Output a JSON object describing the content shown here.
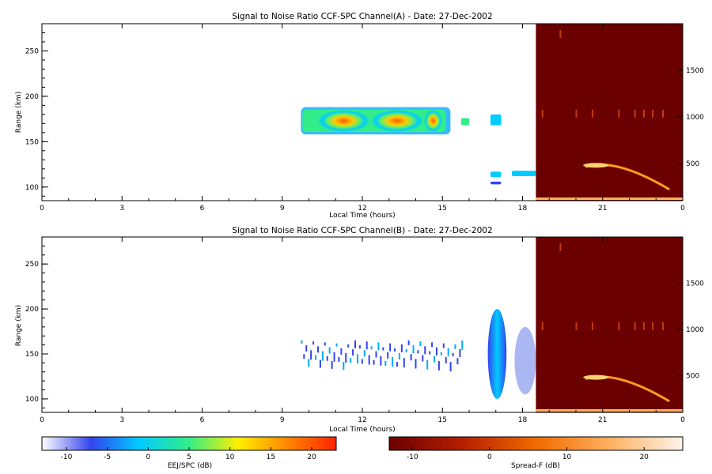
{
  "chart_data": [
    {
      "type": "heatmap",
      "title": "Signal to Noise Ratio CCF-SPC Channel(A) - Date: 27-Dec-2002",
      "xlabel": "Local Time (hours)",
      "ylabel": "Range (km)",
      "xlim": [
        0,
        24
      ],
      "ylim": [
        85,
        280
      ],
      "x_ticks": [
        "0",
        "3",
        "6",
        "9",
        "12",
        "15",
        "18",
        "21",
        "0"
      ],
      "y_ticks": [
        "100",
        "150",
        "200",
        "250"
      ],
      "y2_ticks": [
        "500",
        "1000",
        "1500"
      ],
      "y2lim": [
        100,
        2000
      ],
      "spreadf_start_hour": 18.5,
      "features": [
        {
          "name": "EEJ band",
          "x_start": 9.7,
          "x_end": 15.3,
          "y_low": 158,
          "y_high": 188,
          "peak_db": 17
        },
        {
          "name": "patch",
          "x_start": 15.7,
          "x_end": 16.0,
          "y_low": 168,
          "y_high": 176,
          "peak_db": 2
        },
        {
          "name": "patch",
          "x_start": 16.8,
          "x_end": 17.2,
          "y_low": 168,
          "y_high": 180,
          "peak_db": 0
        },
        {
          "name": "patch",
          "x_start": 16.8,
          "x_end": 17.2,
          "y_low": 111,
          "y_high": 117,
          "peak_db": 0
        },
        {
          "name": "patch",
          "x_start": 16.8,
          "x_end": 17.2,
          "y_low": 103,
          "y_high": 106,
          "peak_db": -5
        },
        {
          "name": "patch",
          "x_start": 17.6,
          "x_end": 18.5,
          "y_low": 112,
          "y_high": 118,
          "peak_db": -4
        }
      ]
    },
    {
      "type": "heatmap",
      "title": "Signal to Noise Ratio CCF-SPC Channel(B) - Date: 27-Dec-2002",
      "xlabel": "Local Time (hours)",
      "ylabel": "Range (km)",
      "xlim": [
        0,
        24
      ],
      "ylim": [
        85,
        280
      ],
      "x_ticks": [
        "0",
        "3",
        "6",
        "9",
        "12",
        "15",
        "18",
        "21",
        "0"
      ],
      "y_ticks": [
        "100",
        "150",
        "200",
        "250"
      ],
      "y2_ticks": [
        "500",
        "1000",
        "1500"
      ],
      "y2lim": [
        100,
        2000
      ],
      "spreadf_start_hour": 18.5,
      "features": [
        {
          "name": "EEJ band",
          "x_start": 9.7,
          "x_end": 15.8,
          "y_low": 140,
          "y_high": 165,
          "peak_db": -7
        },
        {
          "name": "plume",
          "x_start": 16.7,
          "x_end": 17.4,
          "y_low": 100,
          "y_high": 200,
          "peak_db": -1
        },
        {
          "name": "plume",
          "x_start": 17.7,
          "x_end": 18.5,
          "y_low": 105,
          "y_high": 180,
          "peak_db": -7
        }
      ]
    }
  ],
  "colorbars": [
    {
      "label": "EEJ/SPC (dB)",
      "ticks": [
        "-10",
        "-5",
        "0",
        "5",
        "10",
        "15",
        "20"
      ],
      "range": [
        -13,
        23
      ],
      "colors": [
        "#ffffff",
        "#3344ee",
        "#00ccff",
        "#33ee88",
        "#ffee00",
        "#ff8800",
        "#ff2200"
      ]
    },
    {
      "label": "Spread-F (dB)",
      "ticks": [
        "-10",
        "0",
        "10",
        "20"
      ],
      "range": [
        -13,
        25
      ],
      "colors": [
        "#6b0000",
        "#b52000",
        "#f06a00",
        "#ffb060",
        "#fff4ea"
      ]
    }
  ]
}
